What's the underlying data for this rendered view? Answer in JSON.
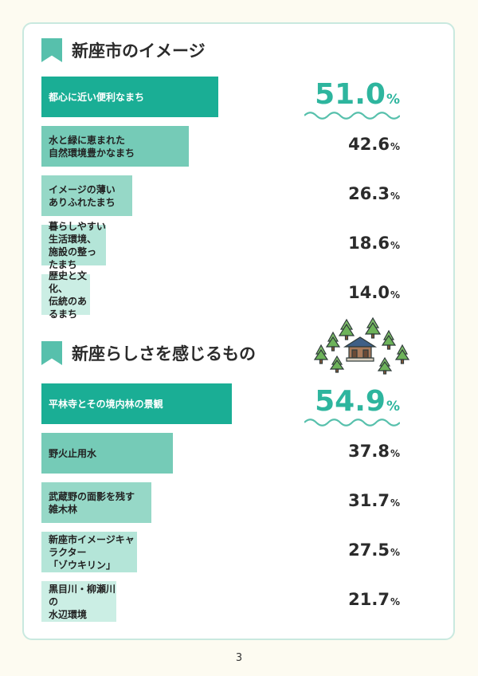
{
  "page_number": "3",
  "colors": {
    "accent": "#57c0ac",
    "highlight_text": "#2eb59e",
    "bar_levels": [
      "#1aae95",
      "#75cbb7",
      "#96d8c7",
      "#b4e5d8",
      "#cbeee4"
    ]
  },
  "sections": [
    {
      "title": "新座市のイメージ",
      "items": [
        {
          "label": "都心に近い便利なまち",
          "value": 51.0,
          "display": "51.0"
        },
        {
          "label": "水と緑に恵まれた\n自然環境豊かなまち",
          "value": 42.6,
          "display": "42.6"
        },
        {
          "label": "イメージの薄い\nありふれたまち",
          "value": 26.3,
          "display": "26.3"
        },
        {
          "label": "暮らしやすい生活環境、\n施設の整ったまち",
          "value": 18.6,
          "display": "18.6"
        },
        {
          "label": "歴史と文化、\n伝統のあるまち",
          "value": 14.0,
          "display": "14.0"
        }
      ]
    },
    {
      "title": "新座らしさを感じるもの",
      "items": [
        {
          "label": "平林寺とその境内林の景観",
          "value": 54.9,
          "display": "54.9"
        },
        {
          "label": "野火止用水",
          "value": 37.8,
          "display": "37.8"
        },
        {
          "label": "武蔵野の面影を残す\n雑木林",
          "value": 31.7,
          "display": "31.7"
        },
        {
          "label": "新座市イメージキャラクター\n「ゾウキリン」",
          "value": 27.5,
          "display": "27.5"
        },
        {
          "label": "黒目川・柳瀬川の\n水辺環境",
          "value": 21.7,
          "display": "21.7"
        }
      ]
    }
  ],
  "unit": "%",
  "chart_data": [
    {
      "type": "bar",
      "title": "新座市のイメージ",
      "categories": [
        "都心に近い便利なまち",
        "水と緑に恵まれた自然環境豊かなまち",
        "イメージの薄いありふれたまち",
        "暮らしやすい生活環境、施設の整ったまち",
        "歴史と文化、伝統のあるまち"
      ],
      "values": [
        51.0,
        42.6,
        26.3,
        18.6,
        14.0
      ],
      "unit": "%"
    },
    {
      "type": "bar",
      "title": "新座らしさを感じるもの",
      "categories": [
        "平林寺とその境内林の景観",
        "野火止用水",
        "武蔵野の面影を残す雑木林",
        "新座市イメージキャラクター「ゾウキリン」",
        "黒目川・柳瀬川の水辺環境"
      ],
      "values": [
        54.9,
        37.8,
        31.7,
        27.5,
        21.7
      ],
      "unit": "%"
    }
  ]
}
